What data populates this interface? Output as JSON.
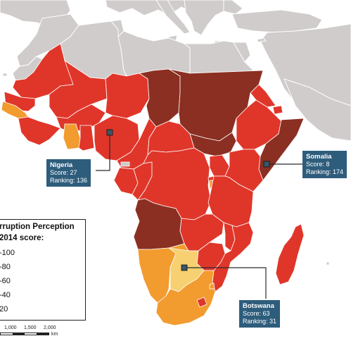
{
  "colors": {
    "ocean": "#ffffff",
    "land_other": "#cfcccb",
    "border": "#ffffff",
    "band_0_20": "#8b2f22",
    "band_20_40": "#e0362a",
    "band_40_60": "#f29b2f",
    "band_60_80": "#f7d071",
    "callout_bg": "#2e5d7c",
    "marker": "#3a5766"
  },
  "legend": {
    "title_line1": "rruption Perception",
    "title_line2": "2014 score:",
    "items": [
      {
        "label": "-100",
        "color": "#ffffff"
      },
      {
        "label": "-80",
        "color": "#f7d071"
      },
      {
        "label": "-60",
        "color": "#f29b2f"
      },
      {
        "label": "-40",
        "color": "#e0362a"
      },
      {
        "label": "20",
        "color": "#8b2f22"
      }
    ]
  },
  "callouts": [
    {
      "id": "nigeria",
      "name": "Nigeria",
      "score": "Score: 27",
      "ranking": "Ranking: 136"
    },
    {
      "id": "somalia",
      "name": "Somalia",
      "score": "Score: 8",
      "ranking": "Ranking: 174"
    },
    {
      "id": "botswana",
      "name": "Botswana",
      "score": "Score: 63",
      "ranking": "Ranking: 31"
    }
  ],
  "scale": {
    "ticks": [
      "1,000",
      "1,500",
      "2,000"
    ],
    "unit": "km"
  }
}
